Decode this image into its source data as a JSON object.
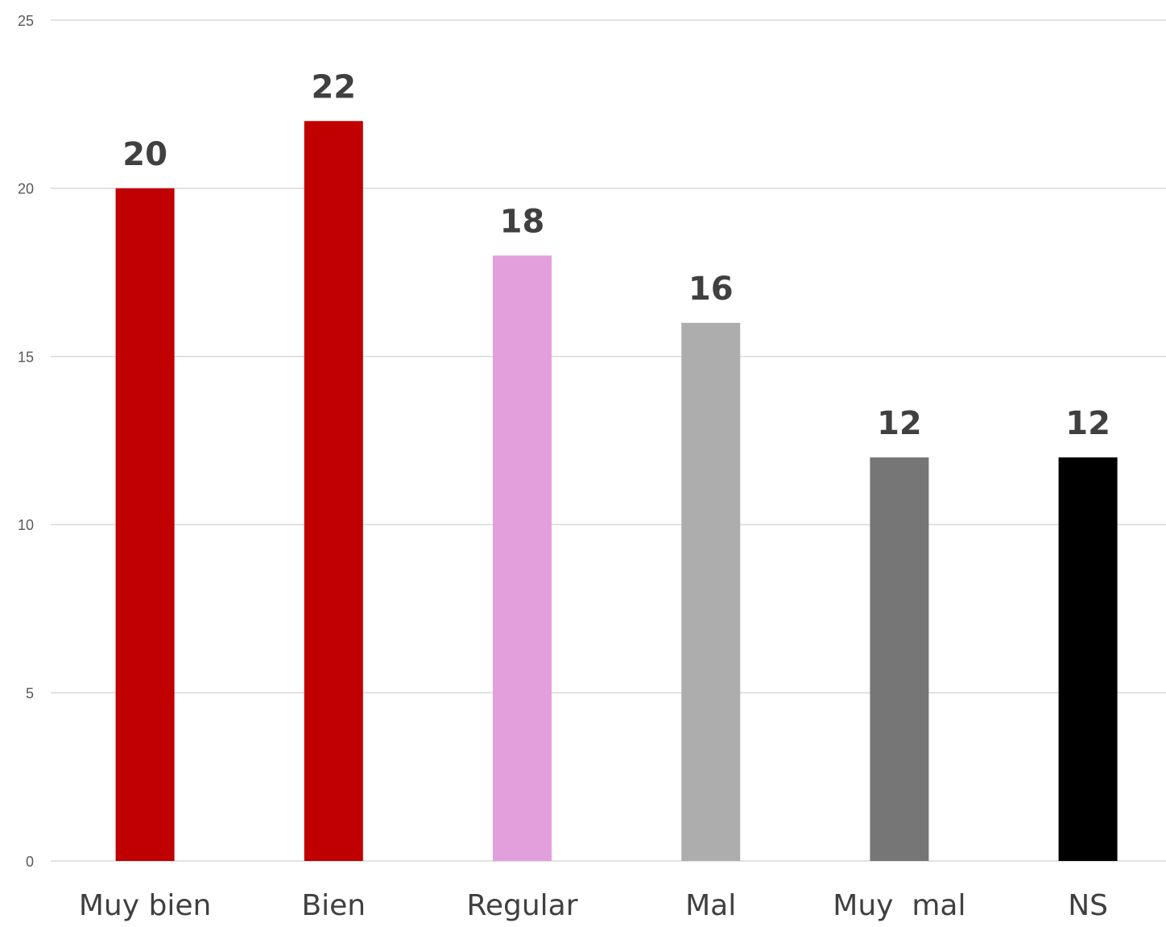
{
  "chart_data": {
    "type": "bar",
    "categories": [
      "Muy bien",
      "Bien",
      "Regular",
      "Mal",
      "Muy  mal",
      "NS"
    ],
    "values": [
      20,
      22,
      18,
      16,
      12,
      12
    ],
    "colors": [
      "#c00000",
      "#c00000",
      "#e39fdb",
      "#adadad",
      "#767676",
      "#000000"
    ],
    "ylim": [
      0,
      25
    ],
    "yticks": [
      0,
      5,
      10,
      15,
      20,
      25
    ],
    "grid": true
  }
}
